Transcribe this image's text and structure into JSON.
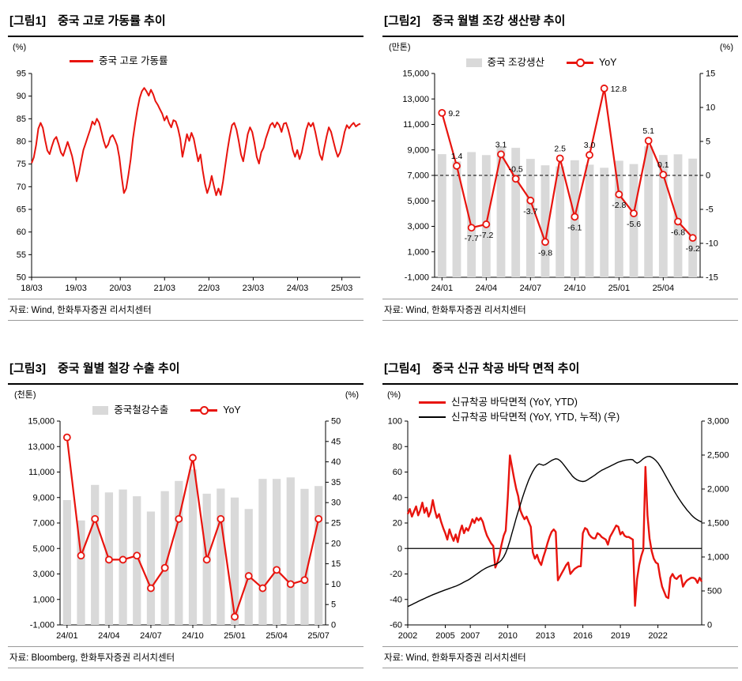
{
  "colors": {
    "red": "#e8140e",
    "bar_gray": "#d9d9d9",
    "axis": "#000000"
  },
  "panels": [
    {
      "tag": "[그림1]",
      "title": "중국 고로 가동률 추이",
      "source": "자료: Wind, 한화투자증권 리서치센터",
      "legend": [
        {
          "label": "중국 고로 가동률"
        }
      ]
    },
    {
      "tag": "[그림2]",
      "title": "중국 월별 조강 생산량 추이",
      "source": "자료: Wind, 한화투자증권 리서치센터",
      "legend": [
        {
          "label": "중국 조강생산"
        },
        {
          "label": "YoY"
        }
      ]
    },
    {
      "tag": "[그림3]",
      "title": "중국 월별 철강 수출 추이",
      "source": "자료: Bloomberg, 한화투자증권 리서치센터",
      "legend": [
        {
          "label": "중국철강수출"
        },
        {
          "label": "YoY"
        }
      ]
    },
    {
      "tag": "[그림4]",
      "title": "중국 신규 착공 바닥 면적 추이",
      "source": "자료: Wind, 한화투자증권 리서치센터",
      "legend": [
        {
          "label": "신규착공 바닥면적 (YoY, YTD)"
        },
        {
          "label": "신규착공 바닥면적 (YoY, YTD, 누적) (우)"
        }
      ]
    }
  ],
  "chart_data": [
    {
      "type": "line",
      "title": "중국 고로 가동률 추이",
      "ylabel": "(%)",
      "ylim": [
        50,
        95
      ],
      "ystep": 5,
      "x_range_months": 89,
      "x_tick_months": [
        0,
        12,
        24,
        36,
        48,
        60,
        72,
        84
      ],
      "x_tick_labels": [
        "18/03",
        "19/03",
        "20/03",
        "21/03",
        "22/03",
        "23/03",
        "24/03",
        "25/03"
      ],
      "series": [
        {
          "name": "중국 고로 가동률",
          "values": [
            75.2,
            76.5,
            79.2,
            82.8,
            84.1,
            83.0,
            80.3,
            78.0,
            77.2,
            78.9,
            80.4,
            81.0,
            79.4,
            77.6,
            76.8,
            78.3,
            79.9,
            78.4,
            76.7,
            74.3,
            71.2,
            72.9,
            75.6,
            78.1,
            79.6,
            81.1,
            82.6,
            84.4,
            83.7,
            85.0,
            84.1,
            82.2,
            80.1,
            78.6,
            79.3,
            80.9,
            81.4,
            80.4,
            79.1,
            76.4,
            72.1,
            68.6,
            69.6,
            72.6,
            76.1,
            80.6,
            84.1,
            87.1,
            89.6,
            91.1,
            91.8,
            91.1,
            90.1,
            91.4,
            90.4,
            88.9,
            88.1,
            87.1,
            86.1,
            84.6,
            85.6,
            84.1,
            83.1,
            84.7,
            84.4,
            82.9,
            80.6,
            76.6,
            79.1,
            81.6,
            80.1,
            81.9,
            80.6,
            78.1,
            75.6,
            77.1,
            73.6,
            70.6,
            68.6,
            70.1,
            72.4,
            70.1,
            68.1,
            69.6,
            68.2,
            71.1,
            74.6,
            78.1,
            81.1,
            83.6,
            84.1,
            82.6,
            80.1,
            77.1,
            75.6,
            78.6,
            81.6,
            83.1,
            82.1,
            79.6,
            76.6,
            75.1,
            77.6,
            78.6,
            80.6,
            82.1,
            83.6,
            84.1,
            83.1,
            84.2,
            83.6,
            82.1,
            83.9,
            84.1,
            82.6,
            80.6,
            78.1,
            76.6,
            78.1,
            76.1,
            77.6,
            80.1,
            82.6,
            84.1,
            83.3,
            84.1,
            82.1,
            79.6,
            77.1,
            75.9,
            78.6,
            81.1,
            83.1,
            82.1,
            80.1,
            78.1,
            76.6,
            77.6,
            79.6,
            82.1,
            83.6,
            82.9,
            83.6,
            84.1,
            83.3,
            83.7,
            83.9
          ]
        }
      ]
    },
    {
      "type": "bar+line",
      "title": "중국 월별 조강 생산량 추이",
      "categories": [
        "24/01",
        "24/02",
        "24/03",
        "24/04",
        "24/05",
        "24/06",
        "24/07",
        "24/08",
        "24/09",
        "24/10",
        "24/11",
        "24/12",
        "25/01",
        "25/02",
        "25/03",
        "25/04",
        "25/05",
        "25/06"
      ],
      "x_tick_every": 3,
      "left": {
        "unit": "(만톤)",
        "min": -1000,
        "max": 15000,
        "step": 2000
      },
      "right": {
        "unit": "(%)",
        "min": -15,
        "max": 15,
        "step": 5
      },
      "zero_dashed": true,
      "bar_series": {
        "name": "중국 조강생산",
        "axis": "left",
        "values": [
          8666,
          8100,
          8830,
          8594,
          9286,
          9161,
          8294,
          7792,
          7707,
          8188,
          7840,
          7600,
          8150,
          7890,
          9284,
          8602,
          8655,
          8318
        ]
      },
      "line_series": {
        "name": "YoY",
        "axis": "right",
        "values": [
          9.2,
          1.4,
          -7.7,
          -7.2,
          3.1,
          -0.5,
          -3.7,
          -9.8,
          2.5,
          -6.1,
          3.0,
          12.8,
          -2.8,
          -5.6,
          5.1,
          0.1,
          -6.8,
          -9.2
        ],
        "point_labels": [
          "9.2",
          "1.4",
          "-7.7",
          "-7.2",
          "3.1",
          "-0.5",
          "-3.7",
          "-9.8",
          "2.5",
          "-6.1",
          "3.0",
          "12.8",
          "-2.8",
          "-5.6",
          "5.1",
          "0.1",
          "-6.8",
          "-9.2"
        ]
      }
    },
    {
      "type": "bar+line",
      "title": "중국 월별 철강 수출 추이",
      "categories": [
        "24/01",
        "24/02",
        "24/03",
        "24/04",
        "24/05",
        "24/06",
        "24/07",
        "24/08",
        "24/09",
        "24/10",
        "24/11",
        "24/12",
        "25/01",
        "25/02",
        "25/03",
        "25/04",
        "25/05",
        "25/06",
        "25/07"
      ],
      "x_tick_every": 3,
      "left": {
        "unit": "(천톤)",
        "min": -1000,
        "max": 15000,
        "step": 2000
      },
      "right": {
        "unit": "(%)",
        "min": 0,
        "max": 50,
        "step": 5
      },
      "zero_dashed": false,
      "bar_series": {
        "name": "중국철강수출",
        "axis": "left",
        "values": [
          8800,
          7200,
          9990,
          9400,
          9630,
          9100,
          7900,
          9500,
          10300,
          11200,
          9300,
          9700,
          9000,
          8100,
          10460,
          10460,
          10580,
          9680,
          9900
        ]
      },
      "line_series": {
        "name": "YoY",
        "axis": "right",
        "values": [
          46,
          17,
          26,
          16,
          16,
          17,
          9,
          14,
          26,
          41,
          16,
          26,
          2,
          12,
          9,
          13.5,
          10,
          11,
          26
        ],
        "point_labels": []
      }
    },
    {
      "type": "multi-line",
      "title": "중국 신규 착공 바닥 면적 추이",
      "x_start": 2002,
      "x_end": 2025.5,
      "x_tick_years": [
        2002,
        2005,
        2007,
        2010,
        2013,
        2016,
        2019,
        2022
      ],
      "left": {
        "unit": "(%)",
        "min": -60,
        "max": 100,
        "step": 20
      },
      "right": {
        "unit": "",
        "min": 0,
        "max": 3000,
        "step": 500
      },
      "zero_line": true,
      "series": [
        {
          "name": "신규착공 바닥면적 (YoY, YTD)",
          "axis": "left",
          "color": "red",
          "width": 2.4,
          "values": [
            27,
            31,
            25,
            29,
            33,
            26,
            30,
            36,
            28,
            32,
            25,
            29,
            38,
            30,
            24,
            27,
            21,
            16,
            12,
            7,
            15,
            10,
            6,
            11,
            5,
            13,
            18,
            12,
            16,
            14,
            18,
            23,
            20,
            24,
            22,
            24,
            21,
            15,
            10,
            7,
            4,
            2,
            -15,
            -11,
            -5,
            3,
            10,
            14,
            40,
            73,
            64,
            55,
            47,
            41,
            30,
            26,
            23,
            25,
            21,
            17,
            -3,
            -8,
            -5,
            -10,
            -13,
            -7,
            -2,
            4,
            9,
            13,
            15,
            13,
            -25,
            -22,
            -19,
            -16,
            -13,
            -11,
            -20,
            -18,
            -16,
            -15,
            -14,
            -14,
            12,
            16,
            15,
            11,
            9,
            8,
            8,
            12,
            11,
            9,
            8,
            7,
            3,
            9,
            12,
            15,
            18,
            17,
            11,
            13,
            10,
            9,
            9,
            8,
            7,
            -45,
            -24,
            -13,
            -6,
            -1,
            64,
            26,
            8,
            -2,
            -8,
            -11,
            -12,
            -22,
            -30,
            -34,
            -38,
            -39,
            -23,
            -20,
            -23,
            -24,
            -22,
            -21,
            -30,
            -27,
            -25,
            -24,
            -23,
            -23,
            -24,
            -27,
            -23,
            -26
          ]
        },
        {
          "name": "신규착공 바닥면적 (YoY, YTD, 누적) (우)",
          "axis": "right",
          "color": "black",
          "width": 1.4,
          "values": [
            270,
            285,
            300,
            315,
            330,
            345,
            360,
            374,
            388,
            402,
            416,
            430,
            444,
            456,
            468,
            480,
            492,
            504,
            515,
            526,
            537,
            548,
            559,
            570,
            583,
            598,
            614,
            630,
            646,
            662,
            680,
            702,
            724,
            746,
            768,
            790,
            810,
            828,
            844,
            858,
            870,
            880,
            890,
            905,
            925,
            955,
            1000,
            1060,
            1140,
            1240,
            1350,
            1460,
            1570,
            1670,
            1770,
            1870,
            1960,
            2050,
            2130,
            2200,
            2260,
            2310,
            2350,
            2370,
            2360,
            2350,
            2360,
            2380,
            2400,
            2420,
            2435,
            2445,
            2440,
            2420,
            2390,
            2350,
            2310,
            2270,
            2230,
            2190,
            2160,
            2140,
            2125,
            2115,
            2110,
            2115,
            2130,
            2150,
            2170,
            2190,
            2210,
            2235,
            2255,
            2275,
            2290,
            2305,
            2320,
            2335,
            2350,
            2365,
            2380,
            2395,
            2405,
            2415,
            2422,
            2428,
            2432,
            2435,
            2430,
            2400,
            2380,
            2395,
            2420,
            2445,
            2465,
            2478,
            2480,
            2468,
            2448,
            2420,
            2385,
            2340,
            2290,
            2235,
            2180,
            2125,
            2070,
            2015,
            1960,
            1910,
            1860,
            1815,
            1770,
            1730,
            1690,
            1655,
            1620,
            1590,
            1565,
            1545,
            1528,
            1515
          ]
        }
      ]
    }
  ]
}
